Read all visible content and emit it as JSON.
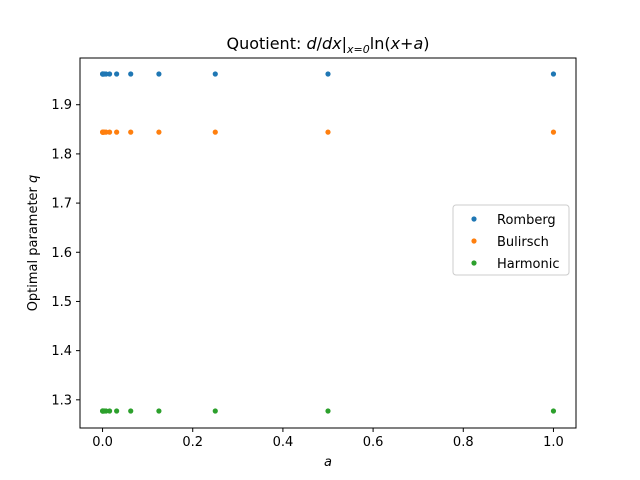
{
  "chart_data": {
    "type": "scatter",
    "title": "Quotient: d/dx|x=0 ln(x+a)",
    "title_parts": {
      "prefix": "Quotient: ",
      "d1": "d",
      "slash": "/",
      "d2": "dx",
      "bar": "|",
      "subscript": "x=0",
      "fn": "ln(",
      "x": "x",
      "plus": "+",
      "a": "a",
      "close": ")"
    },
    "xlabel": "a",
    "ylabel_prefix": "Optimal parameter ",
    "ylabel_var": "q",
    "xlim": [
      -0.05,
      1.05
    ],
    "ylim": [
      1.2427,
      1.995
    ],
    "xticks": [
      "0.0",
      "0.2",
      "0.4",
      "0.6",
      "0.8",
      "1.0"
    ],
    "xtick_values": [
      0.0,
      0.2,
      0.4,
      0.6,
      0.8,
      1.0
    ],
    "yticks": [
      "1.3",
      "1.4",
      "1.5",
      "1.6",
      "1.7",
      "1.8",
      "1.9"
    ],
    "ytick_values": [
      1.3,
      1.4,
      1.5,
      1.6,
      1.7,
      1.8,
      1.9
    ],
    "x": [
      1.0,
      0.5,
      0.25,
      0.125,
      0.0625,
      0.03125,
      0.015625,
      0.0078125,
      0.00390625,
      0.001953125,
      0.0009765625,
      0.00048828125,
      0.000244140625,
      0.0001220703125
    ],
    "series": [
      {
        "name": "Romberg",
        "color": "#1f77b4",
        "value": 1.9625
      },
      {
        "name": "Bulirsch",
        "color": "#ff7f0e",
        "value": 1.8443
      },
      {
        "name": "Harmonic",
        "color": "#2ca02c",
        "value": 1.2773
      }
    ],
    "legend_position": "center-right",
    "grid": false
  }
}
